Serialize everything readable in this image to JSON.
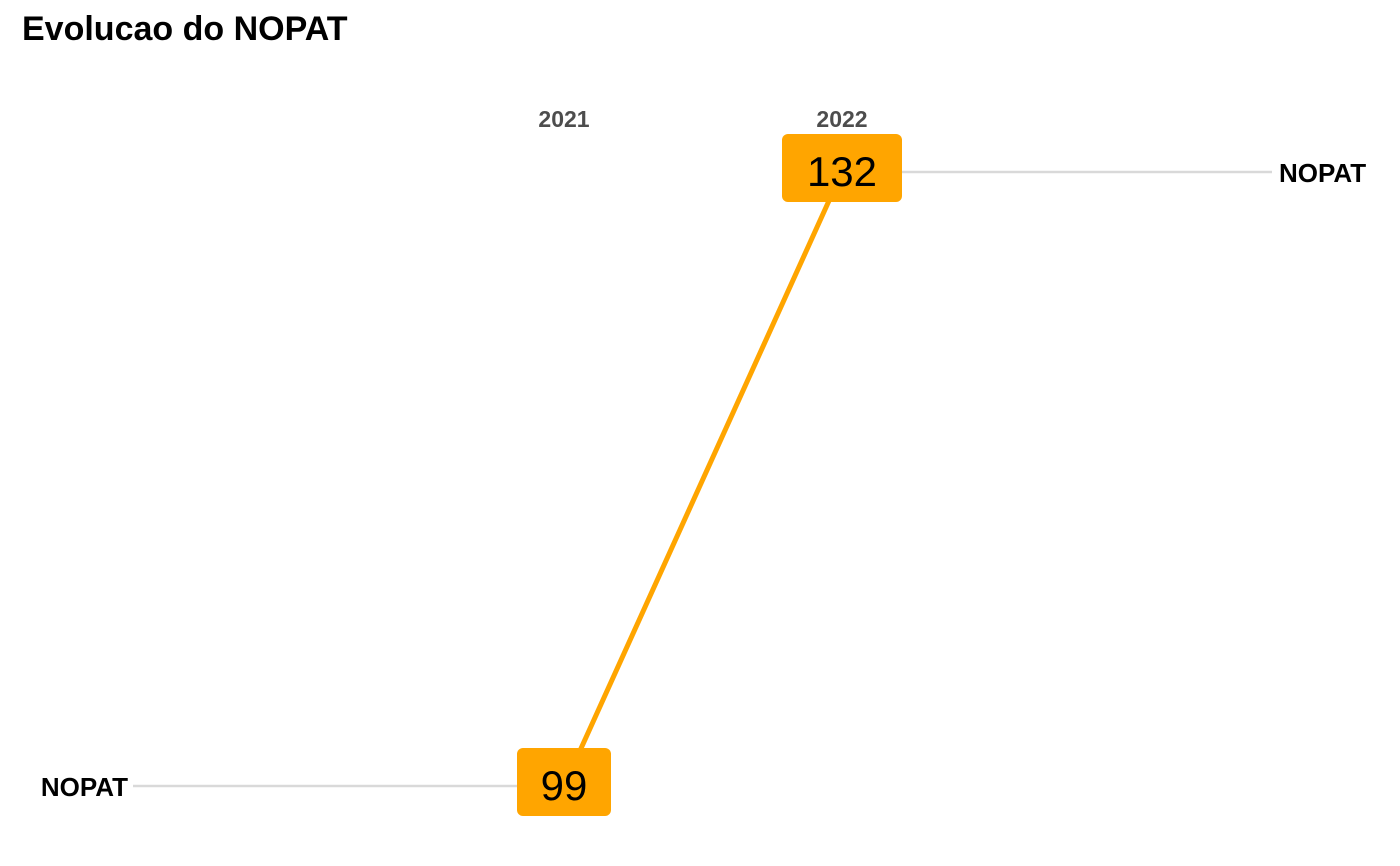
{
  "title": "Evolucao do NOPAT",
  "chart_data": {
    "type": "line",
    "subtype": "slopegraph",
    "title": "Evolucao do NOPAT",
    "categories": [
      "2021",
      "2022"
    ],
    "series": [
      {
        "name": "NOPAT",
        "values": [
          99,
          132
        ],
        "color": "#FFA500"
      }
    ],
    "labels": {
      "left": "NOPAT",
      "right": "NOPAT"
    },
    "ylim": [
      99,
      132
    ],
    "grid": false,
    "colors": {
      "line": "#FFA500",
      "label_box": "#FFA500",
      "connector": "#D9D9D9",
      "axis_text": "#4D4D4D"
    }
  }
}
